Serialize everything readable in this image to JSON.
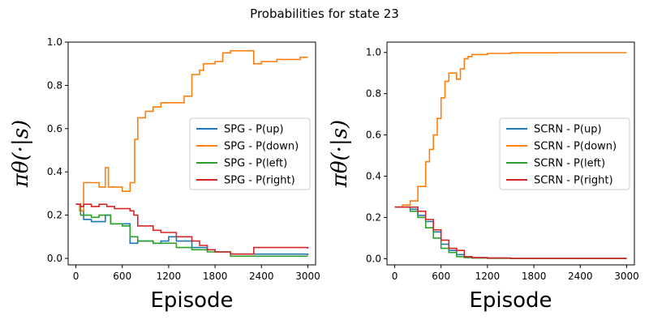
{
  "figure_title": "Probabilities for state 23",
  "colors": {
    "up": "#1f77b4",
    "down": "#ff7f0e",
    "left": "#2ca02c",
    "right": "#d62728"
  },
  "chart_data": [
    {
      "type": "line",
      "title": "",
      "xlabel": "Episode",
      "ylabel": "π_θ(·|s)",
      "xlim": [
        -100,
        3100
      ],
      "ylim": [
        -0.03,
        1.0
      ],
      "xticks": [
        0,
        600,
        1200,
        1800,
        2400,
        3000
      ],
      "yticks": [
        0.0,
        0.2,
        0.4,
        0.6,
        0.8,
        1.0
      ],
      "legend_position": "center-right",
      "series": [
        {
          "name": "SPG - P(up)",
          "color_key": "up",
          "x": [
            0,
            60,
            100,
            200,
            300,
            380,
            450,
            500,
            600,
            700,
            800,
            1000,
            1100,
            1200,
            1300,
            1500,
            1700,
            1800,
            2000,
            2200,
            2400,
            2600,
            2800,
            2900,
            3000
          ],
          "y": [
            0.25,
            0.22,
            0.18,
            0.17,
            0.17,
            0.2,
            0.16,
            0.16,
            0.16,
            0.07,
            0.08,
            0.07,
            0.08,
            0.1,
            0.08,
            0.05,
            0.04,
            0.03,
            0.02,
            0.02,
            0.02,
            0.02,
            0.02,
            0.02,
            0.015
          ]
        },
        {
          "name": "SPG - P(down)",
          "color_key": "down",
          "x": [
            0,
            50,
            100,
            200,
            300,
            380,
            420,
            500,
            600,
            700,
            760,
            800,
            900,
            1000,
            1100,
            1200,
            1300,
            1400,
            1500,
            1600,
            1650,
            1800,
            1900,
            2000,
            2200,
            2300,
            2400,
            2600,
            2800,
            2900,
            3000
          ],
          "y": [
            0.25,
            0.22,
            0.35,
            0.35,
            0.33,
            0.42,
            0.33,
            0.33,
            0.31,
            0.35,
            0.55,
            0.65,
            0.68,
            0.7,
            0.72,
            0.72,
            0.72,
            0.75,
            0.85,
            0.87,
            0.9,
            0.91,
            0.95,
            0.96,
            0.96,
            0.9,
            0.91,
            0.92,
            0.92,
            0.93,
            0.93
          ]
        },
        {
          "name": "SPG - P(left)",
          "color_key": "left",
          "x": [
            0,
            60,
            100,
            200,
            300,
            400,
            450,
            500,
            600,
            700,
            800,
            1000,
            1100,
            1200,
            1300,
            1500,
            1700,
            1800,
            2000,
            2200,
            2400,
            2600,
            2800,
            3000
          ],
          "y": [
            0.25,
            0.2,
            0.2,
            0.19,
            0.2,
            0.2,
            0.16,
            0.16,
            0.15,
            0.1,
            0.08,
            0.07,
            0.07,
            0.07,
            0.05,
            0.04,
            0.03,
            0.03,
            0.01,
            0.01,
            0.01,
            0.01,
            0.01,
            0.01
          ]
        },
        {
          "name": "SPG - P(right)",
          "color_key": "right",
          "x": [
            0,
            60,
            100,
            200,
            300,
            400,
            500,
            600,
            700,
            750,
            800,
            1000,
            1100,
            1200,
            1300,
            1500,
            1600,
            1700,
            1800,
            1900,
            2000,
            2200,
            2300,
            2400,
            2600,
            2800,
            3000
          ],
          "y": [
            0.25,
            0.24,
            0.25,
            0.24,
            0.25,
            0.24,
            0.23,
            0.23,
            0.22,
            0.2,
            0.15,
            0.13,
            0.12,
            0.12,
            0.1,
            0.08,
            0.06,
            0.04,
            0.03,
            0.03,
            0.02,
            0.02,
            0.05,
            0.05,
            0.05,
            0.05,
            0.045
          ]
        }
      ]
    },
    {
      "type": "line",
      "title": "",
      "xlabel": "Episode",
      "ylabel": "π_θ(·|s)",
      "xlim": [
        -100,
        3100
      ],
      "ylim": [
        -0.03,
        1.05
      ],
      "xticks": [
        0,
        600,
        1200,
        1800,
        2400,
        3000
      ],
      "yticks": [
        0.0,
        0.2,
        0.4,
        0.6,
        0.8,
        1.0
      ],
      "legend_position": "center-right",
      "series": [
        {
          "name": "SCRN - P(up)",
          "color_key": "up",
          "x": [
            0,
            100,
            200,
            300,
            400,
            500,
            600,
            700,
            800,
            900,
            1000,
            1200,
            1500,
            1800,
            2100,
            2400,
            2700,
            3000
          ],
          "y": [
            0.25,
            0.25,
            0.24,
            0.21,
            0.18,
            0.13,
            0.07,
            0.04,
            0.02,
            0.01,
            0.005,
            0.003,
            0.002,
            0.002,
            0.002,
            0.002,
            0.002,
            0.002
          ]
        },
        {
          "name": "SCRN - P(down)",
          "color_key": "down",
          "x": [
            0,
            100,
            200,
            300,
            400,
            450,
            500,
            550,
            600,
            650,
            700,
            750,
            800,
            850,
            900,
            950,
            1000,
            1100,
            1200,
            1500,
            1800,
            2100,
            2400,
            2700,
            3000
          ],
          "y": [
            0.25,
            0.26,
            0.28,
            0.35,
            0.47,
            0.53,
            0.6,
            0.68,
            0.78,
            0.86,
            0.9,
            0.9,
            0.87,
            0.92,
            0.97,
            0.98,
            0.99,
            0.99,
            0.995,
            0.998,
            0.998,
            0.999,
            0.999,
            0.999,
            0.999
          ]
        },
        {
          "name": "SCRN - P(left)",
          "color_key": "left",
          "x": [
            0,
            100,
            200,
            300,
            400,
            500,
            600,
            700,
            800,
            900,
            1000,
            1200,
            1500,
            1800,
            2100,
            2400,
            2700,
            3000
          ],
          "y": [
            0.25,
            0.25,
            0.23,
            0.2,
            0.15,
            0.1,
            0.05,
            0.03,
            0.01,
            0.005,
            0.003,
            0.002,
            0.001,
            0.001,
            0.001,
            0.001,
            0.001,
            0.001
          ]
        },
        {
          "name": "SCRN - P(right)",
          "color_key": "right",
          "x": [
            0,
            100,
            200,
            300,
            400,
            500,
            600,
            700,
            800,
            900,
            1000,
            1200,
            1500,
            1800,
            2100,
            2400,
            2700,
            3000
          ],
          "y": [
            0.25,
            0.25,
            0.25,
            0.23,
            0.19,
            0.14,
            0.09,
            0.05,
            0.04,
            0.01,
            0.005,
            0.003,
            0.002,
            0.002,
            0.002,
            0.002,
            0.002,
            0.002
          ]
        }
      ]
    }
  ]
}
